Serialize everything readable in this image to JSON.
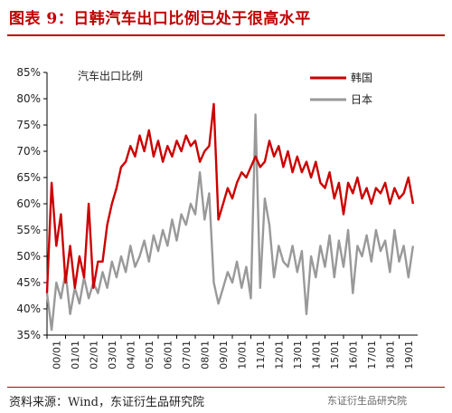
{
  "header": {
    "title": "图表 9：日韩汽车出口比例已处于很高水平"
  },
  "footer": {
    "source": "资料来源：Wind，东证衍生品研究院",
    "watermark": "东证衍生品研究院"
  },
  "chart_data": {
    "type": "line",
    "title": "汽车出口比例",
    "xlabel": "",
    "ylabel": "",
    "ylim": [
      0.35,
      0.85
    ],
    "yticks": [
      "35%",
      "40%",
      "45%",
      "50%",
      "55%",
      "60%",
      "65%",
      "70%",
      "75%",
      "80%",
      "85%"
    ],
    "xticks": [
      "00/01",
      "01/01",
      "02/01",
      "03/01",
      "04/01",
      "05/01",
      "06/01",
      "07/01",
      "08/01",
      "09/01",
      "10/01",
      "11/01",
      "12/01",
      "13/01",
      "14/01",
      "15/01",
      "16/01",
      "17/01",
      "18/01",
      "19/01"
    ],
    "legend_position": "top-right",
    "grid": false,
    "colors": {
      "korea": "#cc0000",
      "japan": "#999999"
    },
    "series": [
      {
        "name": "韩国",
        "color": "#cc0000",
        "x": [
          2000.0,
          2000.25,
          2000.5,
          2000.75,
          2001.0,
          2001.25,
          2001.5,
          2001.75,
          2002.0,
          2002.25,
          2002.5,
          2002.75,
          2003.0,
          2003.25,
          2003.5,
          2003.75,
          2004.0,
          2004.25,
          2004.5,
          2004.75,
          2005.0,
          2005.25,
          2005.5,
          2005.75,
          2006.0,
          2006.25,
          2006.5,
          2006.75,
          2007.0,
          2007.25,
          2007.5,
          2007.75,
          2008.0,
          2008.25,
          2008.5,
          2008.75,
          2009.0,
          2009.25,
          2009.5,
          2009.75,
          2010.0,
          2010.25,
          2010.5,
          2010.75,
          2011.0,
          2011.25,
          2011.5,
          2011.75,
          2012.0,
          2012.25,
          2012.5,
          2012.75,
          2013.0,
          2013.25,
          2013.5,
          2013.75,
          2014.0,
          2014.25,
          2014.5,
          2014.75,
          2015.0,
          2015.25,
          2015.5,
          2015.75,
          2016.0,
          2016.25,
          2016.5,
          2016.75,
          2017.0,
          2017.25,
          2017.5,
          2017.75,
          2018.0,
          2018.25,
          2018.5,
          2018.75,
          2019.0,
          2019.25,
          2019.5,
          2019.75
        ],
        "values": [
          0.43,
          0.64,
          0.52,
          0.58,
          0.45,
          0.52,
          0.44,
          0.5,
          0.46,
          0.6,
          0.44,
          0.49,
          0.49,
          0.56,
          0.6,
          0.63,
          0.67,
          0.68,
          0.71,
          0.69,
          0.73,
          0.7,
          0.74,
          0.69,
          0.72,
          0.68,
          0.71,
          0.69,
          0.72,
          0.7,
          0.73,
          0.71,
          0.72,
          0.68,
          0.7,
          0.71,
          0.79,
          0.57,
          0.6,
          0.63,
          0.61,
          0.64,
          0.66,
          0.65,
          0.67,
          0.69,
          0.67,
          0.68,
          0.72,
          0.69,
          0.71,
          0.67,
          0.7,
          0.66,
          0.69,
          0.66,
          0.68,
          0.65,
          0.68,
          0.64,
          0.63,
          0.66,
          0.61,
          0.64,
          0.58,
          0.64,
          0.62,
          0.65,
          0.61,
          0.63,
          0.6,
          0.63,
          0.62,
          0.64,
          0.6,
          0.63,
          0.61,
          0.62,
          0.65,
          0.6
        ]
      },
      {
        "name": "日本",
        "color": "#999999",
        "x": [
          2000.0,
          2000.25,
          2000.5,
          2000.75,
          2001.0,
          2001.25,
          2001.5,
          2001.75,
          2002.0,
          2002.25,
          2002.5,
          2002.75,
          2003.0,
          2003.25,
          2003.5,
          2003.75,
          2004.0,
          2004.25,
          2004.5,
          2004.75,
          2005.0,
          2005.25,
          2005.5,
          2005.75,
          2006.0,
          2006.25,
          2006.5,
          2006.75,
          2007.0,
          2007.25,
          2007.5,
          2007.75,
          2008.0,
          2008.25,
          2008.5,
          2008.75,
          2009.0,
          2009.25,
          2009.5,
          2009.75,
          2010.0,
          2010.25,
          2010.5,
          2010.75,
          2011.0,
          2011.25,
          2011.5,
          2011.75,
          2012.0,
          2012.25,
          2012.5,
          2012.75,
          2013.0,
          2013.25,
          2013.5,
          2013.75,
          2014.0,
          2014.25,
          2014.5,
          2014.75,
          2015.0,
          2015.25,
          2015.5,
          2015.75,
          2016.0,
          2016.25,
          2016.5,
          2016.75,
          2017.0,
          2017.25,
          2017.5,
          2017.75,
          2018.0,
          2018.25,
          2018.5,
          2018.75,
          2019.0,
          2019.25,
          2019.5,
          2019.75
        ],
        "values": [
          0.43,
          0.36,
          0.45,
          0.42,
          0.47,
          0.39,
          0.44,
          0.41,
          0.46,
          0.42,
          0.45,
          0.43,
          0.47,
          0.44,
          0.49,
          0.46,
          0.5,
          0.47,
          0.52,
          0.48,
          0.5,
          0.53,
          0.49,
          0.54,
          0.51,
          0.55,
          0.52,
          0.57,
          0.53,
          0.58,
          0.56,
          0.6,
          0.58,
          0.66,
          0.57,
          0.62,
          0.45,
          0.41,
          0.44,
          0.47,
          0.45,
          0.49,
          0.44,
          0.48,
          0.42,
          0.77,
          0.44,
          0.61,
          0.56,
          0.46,
          0.52,
          0.49,
          0.48,
          0.52,
          0.47,
          0.51,
          0.39,
          0.5,
          0.46,
          0.52,
          0.48,
          0.54,
          0.46,
          0.53,
          0.48,
          0.55,
          0.43,
          0.52,
          0.5,
          0.54,
          0.49,
          0.55,
          0.51,
          0.53,
          0.47,
          0.55,
          0.49,
          0.52,
          0.46,
          0.52
        ]
      }
    ]
  }
}
